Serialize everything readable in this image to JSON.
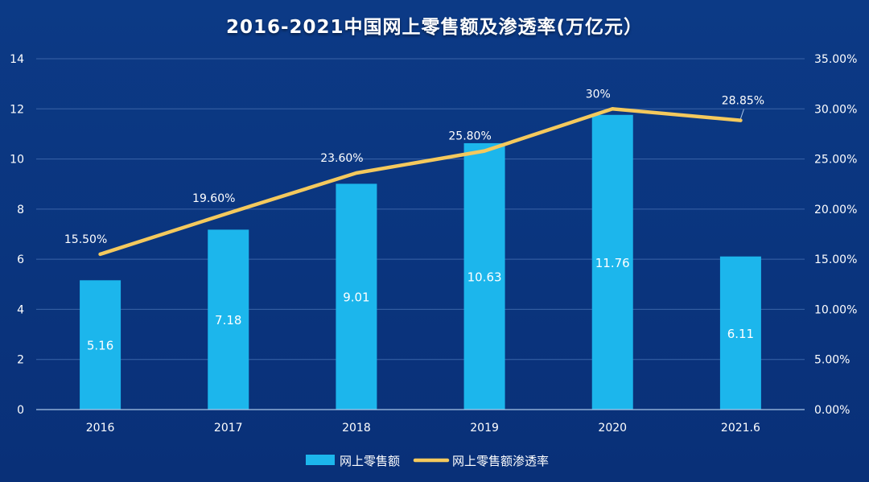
{
  "chart_data": {
    "type": "bar",
    "title": "2016-2021中国网上零售额及渗透率(万亿元）",
    "categories": [
      "2016",
      "2017",
      "2018",
      "2019",
      "2020",
      "2021.6"
    ],
    "y_left_ticks": [
      "0",
      "2",
      "4",
      "6",
      "8",
      "10",
      "12",
      "14"
    ],
    "y_left_range": [
      0,
      14
    ],
    "y_right_ticks": [
      "0.00%",
      "5.00%",
      "10.00%",
      "15.00%",
      "20.00%",
      "25.00%",
      "30.00%",
      "35.00%"
    ],
    "y_right_range": [
      0,
      35
    ],
    "grid": true,
    "legend_position": "bottom",
    "series": [
      {
        "name": "网上零售额",
        "type": "bar",
        "axis": "left",
        "color": "#1cb6ec",
        "values": [
          5.16,
          7.18,
          9.01,
          10.63,
          11.76,
          6.11
        ],
        "labels": [
          "5.16",
          "7.18",
          "9.01",
          "10.63",
          "11.76",
          "6.11"
        ]
      },
      {
        "name": "网上零售额渗透率",
        "type": "line",
        "axis": "right",
        "color": "#f4c95d",
        "values": [
          15.5,
          19.6,
          23.6,
          25.8,
          30.0,
          28.85
        ],
        "labels": [
          "15.50%",
          "19.60%",
          "23.60%",
          "25.80%",
          "30%",
          "28.85%"
        ]
      }
    ]
  }
}
